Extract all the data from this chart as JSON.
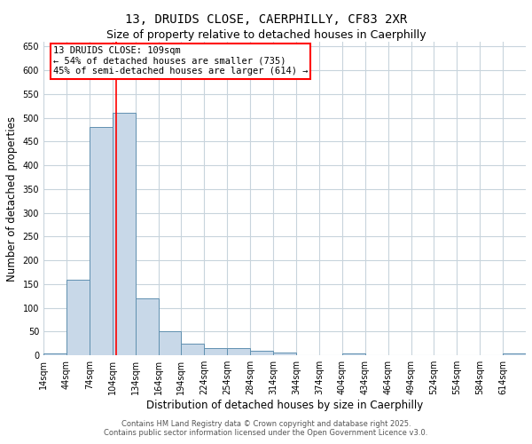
{
  "title_line1": "13, DRUIDS CLOSE, CAERPHILLY, CF83 2XR",
  "title_line2": "Size of property relative to detached houses in Caerphilly",
  "xlabel": "Distribution of detached houses by size in Caerphilly",
  "ylabel": "Number of detached properties",
  "bin_labels": [
    "14sqm",
    "44sqm",
    "74sqm",
    "104sqm",
    "134sqm",
    "164sqm",
    "194sqm",
    "224sqm",
    "254sqm",
    "284sqm",
    "314sqm",
    "344sqm",
    "374sqm",
    "404sqm",
    "434sqm",
    "464sqm",
    "494sqm",
    "524sqm",
    "554sqm",
    "584sqm",
    "614sqm"
  ],
  "bin_starts": [
    14,
    44,
    74,
    104,
    134,
    164,
    194,
    224,
    254,
    284,
    314,
    344,
    374,
    404,
    434,
    464,
    494,
    524,
    554,
    584,
    614
  ],
  "bin_width": 30,
  "values": [
    5,
    160,
    480,
    510,
    120,
    50,
    25,
    15,
    15,
    10,
    7,
    0,
    0,
    5,
    0,
    0,
    0,
    0,
    0,
    0,
    5
  ],
  "bar_color": "#c8d8e8",
  "bar_edge_color": "#6090b0",
  "red_line_x": 109,
  "ylim": [
    0,
    660
  ],
  "yticks": [
    0,
    50,
    100,
    150,
    200,
    250,
    300,
    350,
    400,
    450,
    500,
    550,
    600,
    650
  ],
  "annotation_text": "13 DRUIDS CLOSE: 109sqm\n← 54% of detached houses are smaller (735)\n45% of semi-detached houses are larger (614) →",
  "footer_line1": "Contains HM Land Registry data © Crown copyright and database right 2025.",
  "footer_line2": "Contains public sector information licensed under the Open Government Licence v3.0.",
  "background_color": "#ffffff",
  "grid_color": "#c8d4dc",
  "title1_fontsize": 10,
  "title2_fontsize": 9,
  "xlabel_fontsize": 8.5,
  "ylabel_fontsize": 8.5,
  "tick_fontsize": 7,
  "annot_fontsize": 7.5,
  "footer_fontsize": 6
}
